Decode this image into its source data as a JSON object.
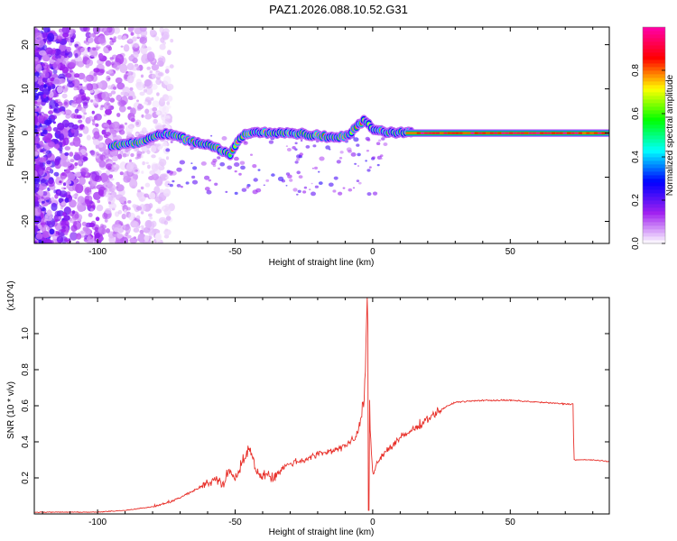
{
  "title": "PAZ1.2026.088.10.52.G31",
  "chart_data": [
    {
      "type": "heatmap",
      "name": "spectrogram",
      "xlabel": "Height of straight line (km)",
      "ylabel": "Frequency (Hz)",
      "xlim": [
        -123,
        86
      ],
      "ylim": [
        -25,
        24
      ],
      "xticks": [
        -100,
        -50,
        0,
        50
      ],
      "xtick_labels": [
        "-100",
        "-50",
        "0",
        "50"
      ],
      "yticks": [
        -20,
        -10,
        0,
        10,
        20
      ],
      "ytick_labels": [
        "-20",
        "-10",
        "0",
        "10",
        "20"
      ],
      "ridge": {
        "description": "dominant frequency track",
        "x": [
          -95,
          -85,
          -75,
          -65,
          -58,
          -52,
          -48,
          -45,
          -40,
          -30,
          -20,
          -12,
          -8,
          -5,
          -3,
          0,
          5,
          15,
          30,
          50,
          70,
          86
        ],
        "y": [
          -3,
          -2,
          0,
          -2,
          -3,
          -5,
          -1,
          0,
          0.2,
          0,
          -0.5,
          -1,
          0,
          2,
          3,
          0.8,
          0.2,
          0,
          0,
          0,
          0,
          0
        ]
      },
      "colorbar": {
        "label": "Normalized spectral amplitude",
        "range": [
          0,
          1
        ],
        "ticks": [
          0,
          0.2,
          0.4,
          0.6,
          0.8
        ],
        "tick_labels": [
          "0.0",
          "0.2",
          "0.4",
          "0.6",
          "0.8"
        ],
        "colors": [
          "#ffffff",
          "#a020f0",
          "#0000ff",
          "#00ffff",
          "#00ff00",
          "#ffff00",
          "#ff0000",
          "#ff00aa"
        ]
      }
    },
    {
      "type": "line",
      "name": "snr",
      "xlabel": "Height of straight line (km)",
      "ylabel": "SNR (10 * v/v)",
      "scale_label": "(x10^4)",
      "xlim": [
        -123,
        86
      ],
      "ylim": [
        0,
        1.2
      ],
      "xticks": [
        -100,
        -50,
        0,
        50
      ],
      "xtick_labels": [
        "-100",
        "-50",
        "0",
        "50"
      ],
      "yticks": [
        0.2,
        0.4,
        0.6,
        0.8,
        1.0
      ],
      "ytick_labels": [
        "0.2",
        "0.4",
        "0.6",
        "0.8",
        "1.0"
      ],
      "color": "#e8302a",
      "series": [
        {
          "name": "SNR",
          "x": [
            -123,
            -110,
            -100,
            -90,
            -80,
            -75,
            -70,
            -65,
            -60,
            -57,
            -55,
            -52,
            -50,
            -47,
            -45,
            -43,
            -41,
            -39,
            -36,
            -33,
            -30,
            -25,
            -20,
            -15,
            -10,
            -6,
            -3,
            -2,
            -1,
            0,
            2,
            5,
            10,
            15,
            20,
            25,
            30,
            40,
            50,
            60,
            70,
            72.9,
            73.1,
            80,
            86
          ],
          "y": [
            0.01,
            0.01,
            0.01,
            0.02,
            0.04,
            0.06,
            0.09,
            0.13,
            0.17,
            0.2,
            0.16,
            0.24,
            0.2,
            0.3,
            0.36,
            0.28,
            0.2,
            0.23,
            0.2,
            0.25,
            0.28,
            0.3,
            0.33,
            0.35,
            0.38,
            0.42,
            0.62,
            1.2,
            0.5,
            0.22,
            0.3,
            0.35,
            0.42,
            0.47,
            0.53,
            0.58,
            0.62,
            0.63,
            0.63,
            0.62,
            0.61,
            0.61,
            0.3,
            0.3,
            0.29
          ]
        }
      ]
    }
  ]
}
